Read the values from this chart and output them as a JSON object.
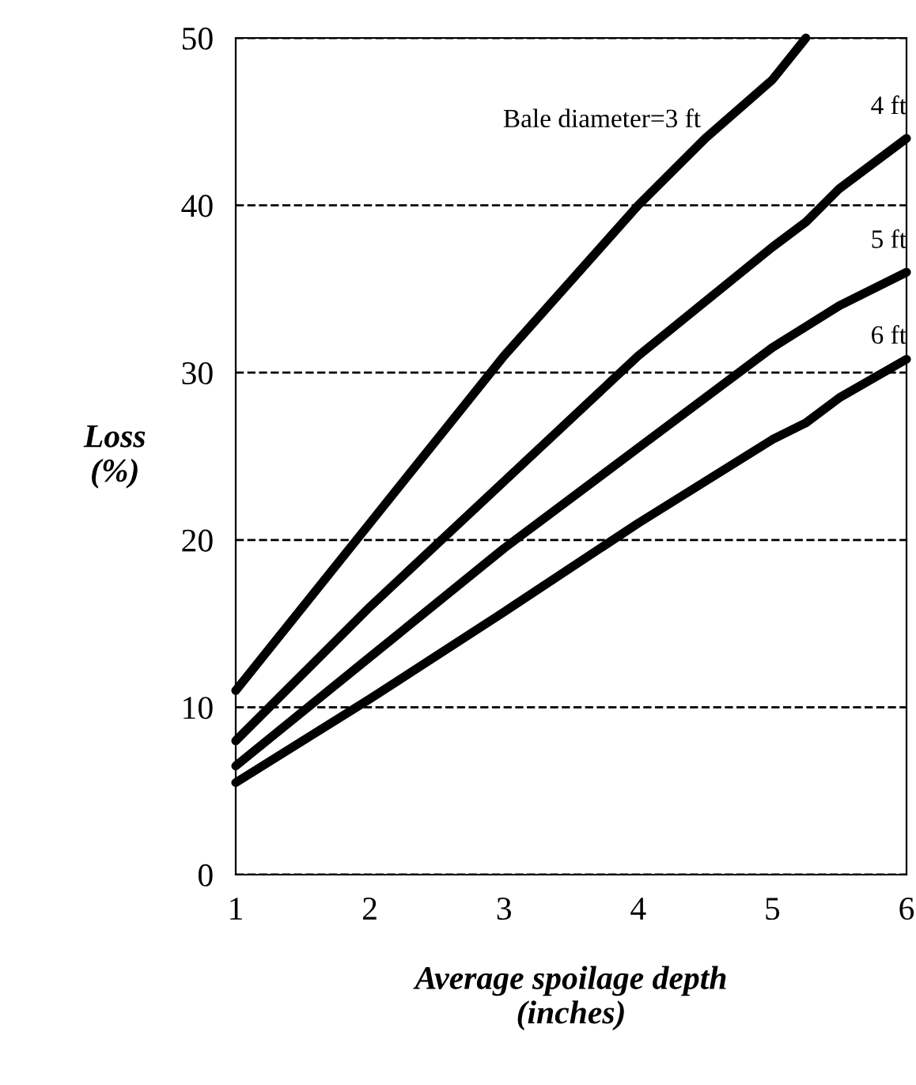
{
  "chart_data": {
    "type": "line",
    "xlabel": "Average spoilage depth\n(inches)",
    "ylabel": "Loss\n(%)",
    "xlim": [
      1,
      6
    ],
    "ylim": [
      0,
      50
    ],
    "xticks": [
      1,
      2,
      3,
      4,
      5,
      6
    ],
    "yticks": [
      0,
      10,
      20,
      30,
      40,
      50
    ],
    "grid": "y",
    "line_style": "solid",
    "series": [
      {
        "name": "Bale diameter=3 ft",
        "color": "#000000",
        "x": [
          1,
          2,
          3,
          4,
          4.5,
          5,
          5.25
        ],
        "values": [
          11,
          21,
          31,
          40,
          44,
          47.5,
          50
        ]
      },
      {
        "name": "4 ft",
        "color": "#000000",
        "x": [
          1,
          2,
          3,
          4,
          5,
          5.25,
          5.5,
          6
        ],
        "values": [
          8,
          16,
          23.5,
          31,
          37.5,
          39,
          41,
          44
        ]
      },
      {
        "name": "5 ft",
        "color": "#000000",
        "x": [
          1,
          2,
          3,
          4,
          5,
          5.5,
          6
        ],
        "values": [
          6.5,
          13,
          19.5,
          25.5,
          31.5,
          34,
          36
        ]
      },
      {
        "name": "6 ft",
        "color": "#000000",
        "x": [
          1,
          2,
          3,
          4,
          5,
          5.25,
          5.5,
          6
        ],
        "values": [
          5.5,
          10.5,
          15.7,
          21,
          26,
          27,
          28.5,
          30.8
        ]
      }
    ]
  }
}
